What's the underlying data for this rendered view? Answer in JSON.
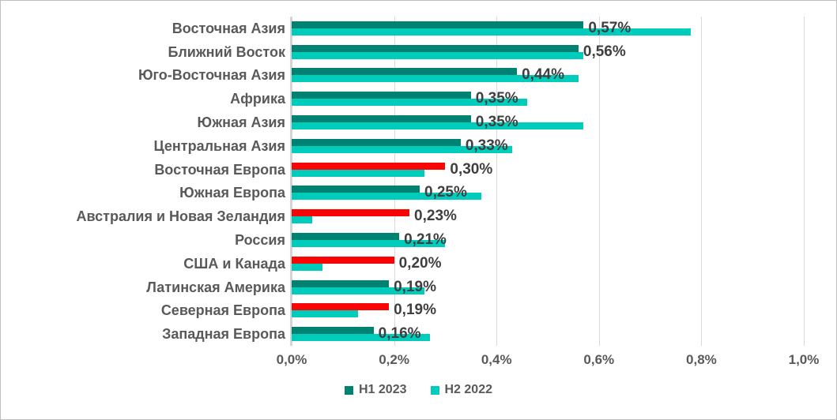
{
  "chart_data": {
    "type": "bar",
    "orientation": "horizontal",
    "title": "",
    "grid": true,
    "legend_position": "bottom",
    "x_axis": {
      "tick_labels": [
        "0,0%",
        "0,2%",
        "0,4%",
        "0,6%",
        "0,8%",
        "1,0%"
      ],
      "tick_values": [
        0,
        0.2,
        0.4,
        0.6,
        0.8,
        1.0
      ],
      "min": 0,
      "max": 1.0,
      "unit": "%"
    },
    "categories": [
      "Восточная Азия",
      "Ближний Восток",
      "Юго-Восточная Азия",
      "Африка",
      "Южная Азия",
      "Центральная Азия",
      "Восточная Европа",
      "Южная Европа",
      "Австралия и Новая Зеландия",
      "Россия",
      "США и Канада",
      "Латинская Америка",
      "Северная Европа",
      "Западная Европа"
    ],
    "series": [
      {
        "name": "H1 2023",
        "color": "#008272",
        "values": [
          0.57,
          0.56,
          0.44,
          0.35,
          0.35,
          0.33,
          0.3,
          0.25,
          0.23,
          0.21,
          0.2,
          0.19,
          0.19,
          0.16
        ],
        "data_labels": [
          "0,57%",
          "0,56%",
          "0,44%",
          "0,35%",
          "0,35%",
          "0,33%",
          "0,30%",
          "0,25%",
          "0,23%",
          "0,21%",
          "0,20%",
          "0,19%",
          "0,19%",
          "0,16%"
        ],
        "bar_colors": [
          "#008272",
          "#008272",
          "#008272",
          "#008272",
          "#008272",
          "#008272",
          "#fa0505",
          "#008272",
          "#fa0505",
          "#008272",
          "#fa0505",
          "#008272",
          "#fa0505",
          "#008272"
        ]
      },
      {
        "name": "H2 2022",
        "color": "#00ccbc",
        "values": [
          0.78,
          0.57,
          0.56,
          0.46,
          0.57,
          0.43,
          0.26,
          0.37,
          0.04,
          0.3,
          0.06,
          0.26,
          0.13,
          0.27
        ],
        "data_labels": [],
        "bar_colors": []
      }
    ],
    "colors": {
      "teal_dark": "#008272",
      "teal_light": "#00ccbc",
      "red_highlight": "#fa0505",
      "gridline": "#d9d9d9",
      "category_text": "#595959",
      "data_label_text": "#3f3f3f"
    }
  }
}
